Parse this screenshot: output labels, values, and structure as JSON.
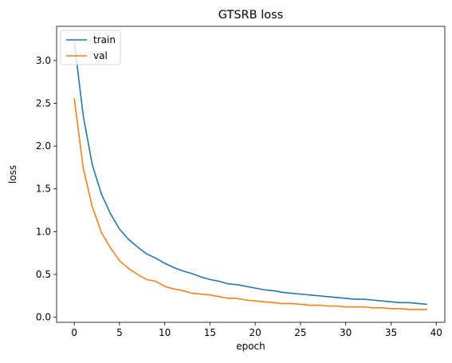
{
  "chart_data": {
    "type": "line",
    "title": "GTSRB loss",
    "xlabel": "epoch",
    "ylabel": "loss",
    "xlim": [
      -1.95,
      40.95
    ],
    "ylim": [
      -0.06,
      3.4
    ],
    "xticks": [
      0,
      5,
      10,
      15,
      20,
      25,
      30,
      35,
      40
    ],
    "yticks": [
      0.0,
      0.5,
      1.0,
      1.5,
      2.0,
      2.5,
      3.0
    ],
    "xtick_labels": [
      "0",
      "5",
      "10",
      "15",
      "20",
      "25",
      "30",
      "35",
      "40"
    ],
    "ytick_labels": [
      "0.0",
      "0.5",
      "1.0",
      "1.5",
      "2.0",
      "2.5",
      "3.0"
    ],
    "grid": false,
    "legend": "upper-left",
    "x": [
      0,
      1,
      2,
      3,
      4,
      5,
      6,
      7,
      8,
      9,
      10,
      11,
      12,
      13,
      14,
      15,
      16,
      17,
      18,
      19,
      20,
      21,
      22,
      23,
      24,
      25,
      26,
      27,
      28,
      29,
      30,
      31,
      32,
      33,
      34,
      35,
      36,
      37,
      38,
      39
    ],
    "series": [
      {
        "name": "train",
        "color": "#1f77b4",
        "values": [
          3.22,
          2.35,
          1.78,
          1.44,
          1.21,
          1.03,
          0.91,
          0.82,
          0.74,
          0.69,
          0.63,
          0.58,
          0.54,
          0.51,
          0.47,
          0.44,
          0.42,
          0.39,
          0.38,
          0.36,
          0.34,
          0.32,
          0.31,
          0.29,
          0.28,
          0.27,
          0.26,
          0.25,
          0.24,
          0.23,
          0.22,
          0.21,
          0.21,
          0.2,
          0.19,
          0.18,
          0.17,
          0.17,
          0.16,
          0.15
        ]
      },
      {
        "name": "val",
        "color": "#ff7f0e",
        "values": [
          2.56,
          1.74,
          1.29,
          0.99,
          0.81,
          0.66,
          0.57,
          0.5,
          0.44,
          0.42,
          0.36,
          0.33,
          0.31,
          0.28,
          0.27,
          0.26,
          0.24,
          0.22,
          0.22,
          0.2,
          0.19,
          0.18,
          0.17,
          0.16,
          0.16,
          0.15,
          0.14,
          0.14,
          0.13,
          0.13,
          0.12,
          0.12,
          0.12,
          0.11,
          0.11,
          0.1,
          0.1,
          0.09,
          0.09,
          0.09
        ]
      }
    ]
  }
}
